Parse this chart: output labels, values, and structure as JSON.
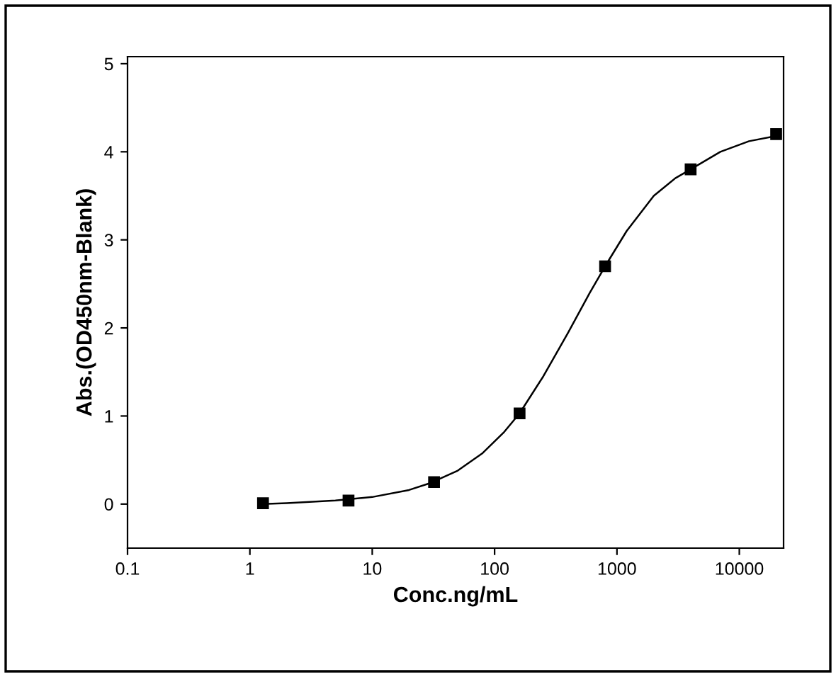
{
  "chart_data": {
    "type": "scatter",
    "xlabel": "Conc.ng/mL",
    "ylabel": "Abs.(OD450nm-Blank)",
    "log": "x",
    "xlim": [
      0.1,
      23000
    ],
    "ylim": [
      -0.5,
      5.08
    ],
    "xticks": [
      0.1,
      1,
      10,
      100,
      1000,
      10000
    ],
    "yticks": [
      0,
      1,
      2,
      3,
      4,
      5
    ],
    "grid": false,
    "legend": false,
    "series": [
      {
        "color": "#000000",
        "marker": "square",
        "x": [
          1.28,
          6.4,
          32,
          160,
          800,
          4000,
          20000
        ],
        "values": [
          0.01,
          0.04,
          0.25,
          1.03,
          2.7,
          3.8,
          4.2
        ]
      },
      {
        "type": "line",
        "color": "#000000",
        "marker": "none",
        "line_style": "solid",
        "x": [
          1.28,
          2,
          5,
          10,
          20,
          30,
          50,
          80,
          120,
          160,
          250,
          400,
          600,
          800,
          1200,
          2000,
          3000,
          4000,
          7000,
          12000,
          20000
        ],
        "values": [
          0.0,
          0.01,
          0.04,
          0.08,
          0.16,
          0.24,
          0.38,
          0.58,
          0.82,
          1.03,
          1.45,
          1.95,
          2.4,
          2.7,
          3.1,
          3.5,
          3.7,
          3.8,
          4.0,
          4.12,
          4.18
        ]
      }
    ]
  }
}
